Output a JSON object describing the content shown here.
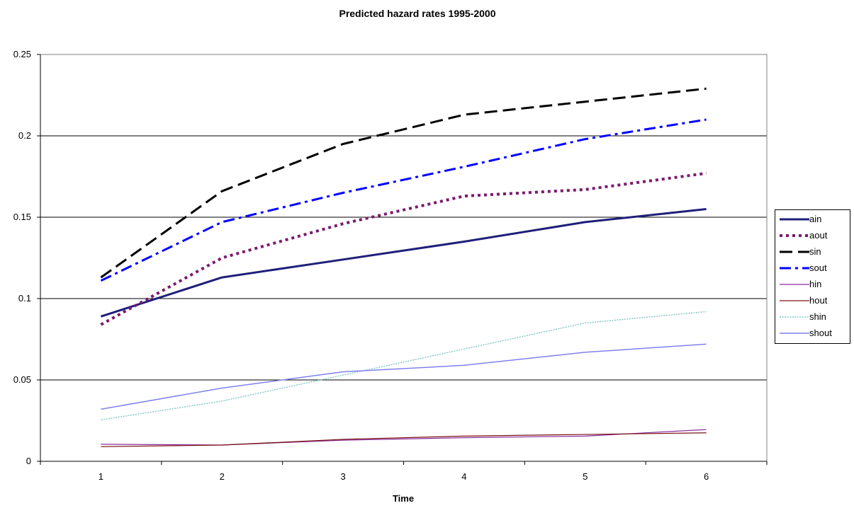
{
  "chart_data": {
    "type": "line",
    "title": "Predicted hazard rates 1995-2000",
    "xlabel": "Time",
    "ylabel": "",
    "categories": [
      "1",
      "2",
      "3",
      "4",
      "5",
      "6"
    ],
    "ylim": [
      0,
      0.25
    ],
    "yticks": [
      "0",
      "0.05",
      "0.1",
      "0.15",
      "0.2",
      "0.25"
    ],
    "grid": "horizontal",
    "legend_position": "right",
    "series": [
      {
        "name": "ain",
        "values": [
          0.089,
          0.113,
          0.124,
          0.135,
          0.147,
          0.155
        ],
        "color": "#1f1f7a",
        "dash": "solid",
        "width": 3
      },
      {
        "name": "aout",
        "values": [
          0.084,
          0.125,
          0.146,
          0.163,
          0.167,
          0.177
        ],
        "color": "#7b1a6e",
        "dash": "dotted",
        "width": 4
      },
      {
        "name": "sin",
        "values": [
          0.113,
          0.166,
          0.195,
          0.213,
          0.221,
          0.229
        ],
        "color": "#000000",
        "dash": "dashed",
        "width": 3
      },
      {
        "name": "sout",
        "values": [
          0.111,
          0.147,
          0.165,
          0.181,
          0.198,
          0.21
        ],
        "color": "#0000ff",
        "dash": "dashdot",
        "width": 3
      },
      {
        "name": "hin",
        "values": [
          0.0105,
          0.01,
          0.013,
          0.0145,
          0.0155,
          0.0195
        ],
        "color": "#8a2b9a",
        "dash": "solid",
        "width": 1.2
      },
      {
        "name": "hout",
        "values": [
          0.009,
          0.01,
          0.0135,
          0.0155,
          0.0165,
          0.0175
        ],
        "color": "#7a1010",
        "dash": "solid",
        "width": 1.2
      },
      {
        "name": "shin",
        "values": [
          0.0255,
          0.037,
          0.053,
          0.069,
          0.085,
          0.092
        ],
        "color": "#88c8c8",
        "dash": "dotted-thin",
        "width": 1.5
      },
      {
        "name": "shout",
        "values": [
          0.032,
          0.045,
          0.055,
          0.059,
          0.067,
          0.072
        ],
        "color": "#8080ee",
        "dash": "solid",
        "width": 1.5
      }
    ]
  }
}
